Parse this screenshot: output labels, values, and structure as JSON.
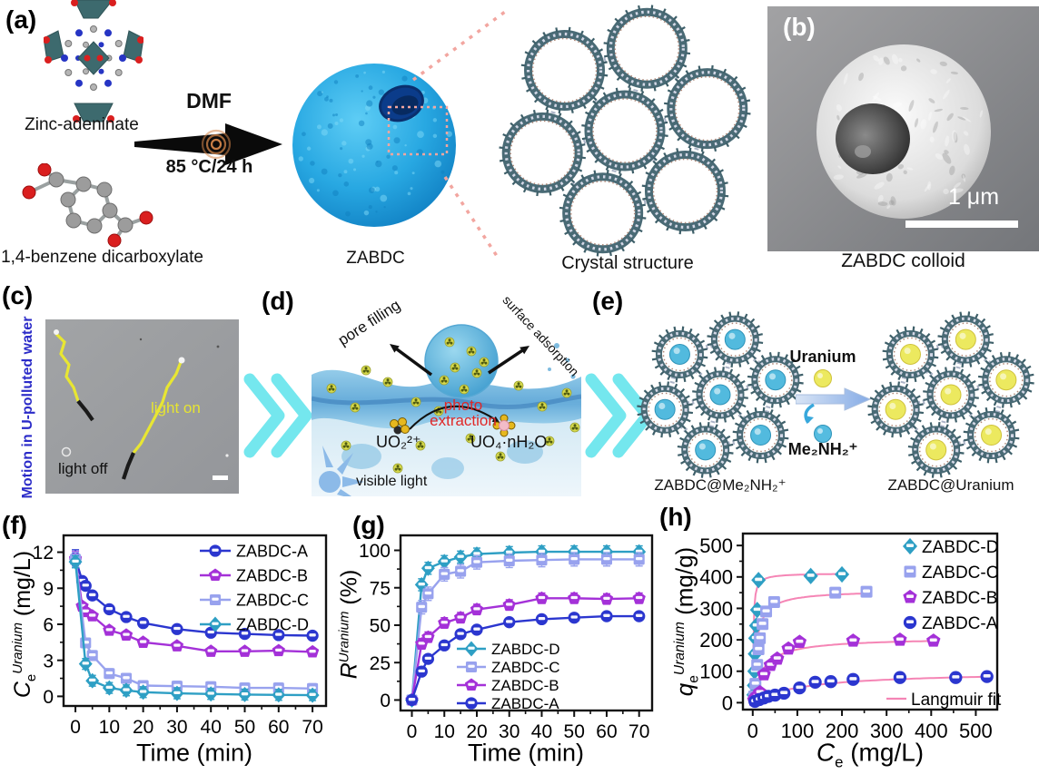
{
  "figure": {
    "panel_labels": {
      "a": "(a)",
      "b": "(b)",
      "c": "(c)",
      "d": "(d)",
      "e": "(e)",
      "f": "(f)",
      "g": "(g)",
      "h": "(h)"
    },
    "panel_a": {
      "reactant_top": "Zinc-adeninate",
      "reactant_bottom": "1,4-benzene dicarboxylate",
      "condition_top": "DMF",
      "condition_bottom": "85 °C/24 h",
      "product_label": "ZABDC",
      "crystal_caption": "Crystal structure"
    },
    "panel_b": {
      "scale_bar_label": "1 μm",
      "caption": "ZABDC colloid"
    },
    "panel_c": {
      "side_label": "Motion in U-polluted water",
      "trajectory_on_label": "light on",
      "trajectory_off_label": "light off"
    },
    "panel_d": {
      "label_pore": "pore filling",
      "label_surface": "surface adsorption",
      "label_photo_1": "photo",
      "label_photo_2": "extraction",
      "species_left": "UO₂²⁺",
      "species_right": "UO₄·nH₂O",
      "label_light": "visible light"
    },
    "panel_e": {
      "left_caption": "ZABDC@Me₂NH₂⁺",
      "right_caption": "ZABDC@Uranium",
      "arrow_top_label": "Uranium",
      "arrow_bottom_label": "Me₂NH₂⁺"
    }
  },
  "colors": {
    "series_A": "#2b36cf",
    "series_B": "#a431d8",
    "series_C": "#98a2ee",
    "series_D": "#2e9fc4",
    "langmuir_fit": "#f585b5",
    "motion_label_blue": "#2a2ac8",
    "light_on_yellow": "#e6e432",
    "photo_extraction_red": "#e02828",
    "chevron_cyan": "#74e7ee",
    "zabdc_sphere_blue": "#28a8e2",
    "uranium_yellow": "#ece95f"
  },
  "chart_data": [
    {
      "id": "f",
      "type": "line",
      "xlabel": "Time (min)",
      "ylabel": {
        "base": "C",
        "sub": "e",
        "sup": "Uranium",
        "unit": " (mg/L)"
      },
      "xticks": [
        0,
        10,
        20,
        30,
        40,
        50,
        60,
        70
      ],
      "yticks": [
        0,
        3,
        6,
        9,
        12
      ],
      "xlim": [
        -3.5,
        74
      ],
      "ylim": [
        -0.8,
        13.4
      ],
      "grid": false,
      "legend_position": "top-right",
      "series": [
        {
          "name": "ZABDC-A",
          "color": "#2b36cf",
          "marker": "circle",
          "err": 0.3,
          "err0": 0.7,
          "x": [
            0,
            2,
            3,
            5,
            10,
            15,
            20,
            30,
            40,
            50,
            60,
            70
          ],
          "y": [
            11.5,
            9.6,
            9.2,
            8.4,
            7.25,
            6.6,
            6.1,
            5.6,
            5.3,
            5.2,
            5.1,
            5.05
          ]
        },
        {
          "name": "ZABDC-B",
          "color": "#a431d8",
          "marker": "pentagon",
          "err": 0.3,
          "err0": 0.6,
          "x": [
            0,
            2,
            3,
            5,
            10,
            15,
            20,
            30,
            40,
            50,
            60,
            70
          ],
          "y": [
            11.45,
            7.5,
            7.05,
            6.7,
            5.5,
            5.1,
            4.5,
            4.2,
            3.75,
            3.75,
            3.8,
            3.7
          ]
        },
        {
          "name": "ZABDC-C",
          "color": "#98a2ee",
          "marker": "square",
          "err": 0.4,
          "err0": 0.6,
          "x": [
            0,
            3,
            5,
            10,
            15,
            20,
            30,
            40,
            50,
            60,
            70
          ],
          "y": [
            11.4,
            4.45,
            3.4,
            1.9,
            1.5,
            0.9,
            0.85,
            0.8,
            0.7,
            0.7,
            0.65
          ]
        },
        {
          "name": "ZABDC-D",
          "color": "#2e9fc4",
          "marker": "diamond",
          "err": 0.45,
          "err0": 0.5,
          "x": [
            0,
            3,
            5,
            10,
            15,
            20,
            30,
            40,
            50,
            60,
            70
          ],
          "y": [
            11.2,
            2.7,
            1.3,
            0.7,
            0.5,
            0.35,
            0.25,
            0.2,
            0.15,
            0.12,
            0.1
          ]
        }
      ]
    },
    {
      "id": "g",
      "type": "line",
      "xlabel": "Time (min)",
      "ylabel": {
        "base": "R",
        "sup": "Uranium",
        "unit": " (%)"
      },
      "xticks": [
        0,
        10,
        20,
        30,
        40,
        50,
        60,
        70
      ],
      "yticks": [
        0,
        25,
        50,
        75,
        100
      ],
      "xlim": [
        -3.5,
        74
      ],
      "ylim": [
        -7,
        110
      ],
      "grid": false,
      "legend_position": "bottom-right",
      "series": [
        {
          "name": "ZABDC-D",
          "color": "#2e9fc4",
          "marker": "diamond",
          "err": 4,
          "err0": 1,
          "x": [
            0,
            3,
            5,
            10,
            15,
            20,
            30,
            40,
            50,
            60,
            70
          ],
          "y": [
            0,
            77,
            88,
            92.5,
            95.5,
            97.5,
            98.5,
            99,
            99,
            99,
            99
          ]
        },
        {
          "name": "ZABDC-C",
          "color": "#98a2ee",
          "marker": "square",
          "err": 4.5,
          "err0": 1,
          "x": [
            0,
            3,
            5,
            10,
            15,
            20,
            30,
            40,
            50,
            60,
            70
          ],
          "y": [
            0,
            62,
            71,
            84,
            86,
            92,
            93,
            93.5,
            94,
            94,
            94
          ]
        },
        {
          "name": "ZABDC-B",
          "color": "#a431d8",
          "marker": "pentagon",
          "err": 3.5,
          "err0": 1,
          "x": [
            0,
            3,
            5,
            10,
            15,
            20,
            30,
            40,
            50,
            60,
            70
          ],
          "y": [
            0,
            37.5,
            42,
            51.5,
            55,
            60.5,
            63.5,
            68,
            68,
            67.5,
            68
          ]
        },
        {
          "name": "ZABDC-A",
          "color": "#2b36cf",
          "marker": "circle",
          "err": 2.5,
          "err0": 1,
          "x": [
            0,
            3,
            5,
            10,
            15,
            20,
            30,
            40,
            50,
            60,
            70
          ],
          "y": [
            0,
            19,
            27.5,
            36.5,
            44,
            47,
            52,
            54,
            55,
            56,
            56
          ]
        }
      ]
    },
    {
      "id": "h",
      "type": "scatter",
      "lines": false,
      "xlabel": {
        "base": "C",
        "sub": "e",
        "unit": " (mg/L)"
      },
      "ylabel": {
        "base": "q",
        "sub": "e",
        "sup": "Uranium",
        "unit": " (mg/g)"
      },
      "xticks": [
        0,
        100,
        200,
        300,
        400,
        500
      ],
      "yticks": [
        0,
        100,
        200,
        300,
        400,
        500
      ],
      "xlim": [
        -22,
        548
      ],
      "ylim": [
        -22,
        538
      ],
      "grid": false,
      "legend_position": "top-right",
      "fit_label": "Langmuir fit",
      "fit_color": "#f585b5",
      "series": [
        {
          "name": "ZABDC-D",
          "color": "#2e9fc4",
          "marker": "diamond",
          "err": 12,
          "x": [
            2,
            3,
            4,
            5,
            6,
            8,
            10,
            13,
            130,
            200
          ],
          "y": [
            25,
            55,
            100,
            155,
            205,
            245,
            295,
            390,
            403,
            408
          ],
          "fit": {
            "qm": 412,
            "K": 0.8,
            "xmax": 205
          }
        },
        {
          "name": "ZABDC-C",
          "color": "#98a2ee",
          "marker": "square",
          "err": 11,
          "x": [
            3,
            6,
            10,
            13,
            16,
            22,
            30,
            48,
            185,
            255
          ],
          "y": [
            20,
            60,
            120,
            170,
            205,
            250,
            290,
            320,
            350,
            353
          ],
          "fit": {
            "qm": 358,
            "K": 0.13,
            "xmax": 258
          }
        },
        {
          "name": "ZABDC-B",
          "color": "#a431d8",
          "marker": "pentagon",
          "err": 8,
          "x": [
            3,
            6,
            10,
            16,
            25,
            40,
            55,
            80,
            105,
            225,
            330,
            405
          ],
          "y": [
            8,
            15,
            22,
            33,
            90,
            120,
            140,
            172,
            193,
            197,
            200,
            197
          ],
          "fit": {
            "qm": 207,
            "K": 0.045,
            "xmax": 412
          }
        },
        {
          "name": "ZABDC-A",
          "color": "#2b36cf",
          "marker": "circle",
          "err": 5,
          "x": [
            5,
            15,
            25,
            35,
            50,
            70,
            105,
            140,
            175,
            225,
            330,
            455,
            525
          ],
          "y": [
            4,
            10,
            15,
            20,
            24,
            30,
            47,
            65,
            67,
            74,
            80,
            80,
            83
          ],
          "fit": {
            "qm": 100,
            "K": 0.009,
            "xmax": 535
          }
        }
      ]
    }
  ]
}
